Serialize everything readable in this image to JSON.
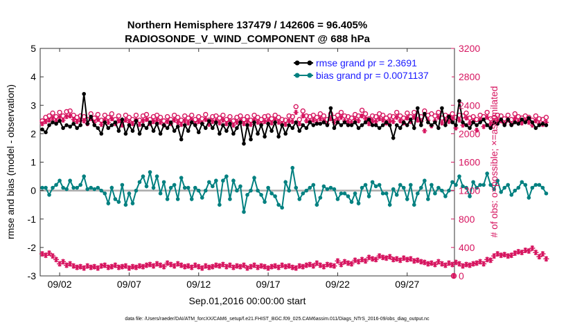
{
  "colors": {
    "rmse": "#000000",
    "bias": "#008080",
    "obs": "#d6145f",
    "rmse_legend_text": "#1a1aff",
    "bias_legend_text": "#1a1aff",
    "zero_line": "#aaaaaa"
  },
  "chart_data": {
    "type": "line",
    "title": "Northern Hemisphere 137479 / 142606 = 96.405%",
    "subtitle": "RADIOSONDE_V_WIND_COMPONENT @ 688 hPa",
    "xlabel": "Sep.01,2016 00:00:00 start",
    "ylabel_left": "rmse and bias (model - observation)",
    "ylabel_right": "# of obs: o=possible; ×=assimilated",
    "footer": "data file: /Users/raeder/DAI/ATM_forcXX/CAM6_setup/f.e21.FHIST_BGC.f09_025.CAM6assim.011/Diags_NTrS_2016-09/obs_diag_output.nc",
    "xlim": [
      0.6,
      30.4
    ],
    "ylim_left": [
      -3,
      5
    ],
    "ylim_right": [
      0,
      3200
    ],
    "xticks": [
      2,
      7,
      12,
      17,
      22,
      27
    ],
    "xtick_labels": [
      "09/02",
      "09/07",
      "09/12",
      "09/17",
      "09/22",
      "09/27"
    ],
    "yticks_left": [
      -3,
      -2,
      -1,
      0,
      1,
      2,
      3,
      4,
      5
    ],
    "ytick_labels_left": [
      "-3",
      "-2",
      "-1",
      "0",
      "1",
      "2",
      "3",
      "4",
      "5"
    ],
    "yticks_right": [
      0,
      400,
      800,
      1200,
      1600,
      2000,
      2400,
      2800,
      3200
    ],
    "ytick_labels_right": [
      "0",
      "400",
      "800",
      "1200",
      "1600",
      "2000",
      "2400",
      "2800",
      "3200"
    ],
    "legend": [
      {
        "name": "rmse grand pr = 2.3691"
      },
      {
        "name": "bias grand pr = 0.0071137"
      }
    ],
    "legend_position": "top-right",
    "x_start": 0.75,
    "x_step": 0.25,
    "series": [
      {
        "name": "rmse",
        "values": [
          2.15,
          2.05,
          2.3,
          2.4,
          2.35,
          2.45,
          2.2,
          2.3,
          2.25,
          2.35,
          2.2,
          2.3,
          3.4,
          2.35,
          2.6,
          2.3,
          2.2,
          2.0,
          2.4,
          2.2,
          2.3,
          2.4,
          2.1,
          2.5,
          2.0,
          2.3,
          2.1,
          2.45,
          2.0,
          2.3,
          2.2,
          2.4,
          2.1,
          2.35,
          2.0,
          2.3,
          2.2,
          2.4,
          2.1,
          2.25,
          1.8,
          2.3,
          2.1,
          2.4,
          2.3,
          2.05,
          2.35,
          2.2,
          2.45,
          2.2,
          2.4,
          2.0,
          2.3,
          2.1,
          2.35,
          2.0,
          2.2,
          2.4,
          1.65,
          2.3,
          1.8,
          2.4,
          2.0,
          2.3,
          1.9,
          2.35,
          2.1,
          2.4,
          1.9,
          2.3,
          2.0,
          2.3,
          2.2,
          2.4,
          2.1,
          2.3,
          2.2,
          2.4,
          2.3,
          2.35,
          2.35,
          2.4,
          2.3,
          2.9,
          2.2,
          2.4,
          2.3,
          2.4,
          2.3,
          2.3,
          2.4,
          2.2,
          2.3,
          2.4,
          2.5,
          2.3,
          2.3,
          2.2,
          2.3,
          2.4,
          2.3,
          1.85,
          2.3,
          2.2,
          2.4,
          2.3,
          2.5,
          2.2,
          2.9,
          2.3,
          2.7,
          2.4,
          2.3,
          2.4,
          2.2,
          2.9,
          2.3,
          2.6,
          2.4,
          2.3,
          3.15,
          2.4,
          2.3,
          2.2,
          2.4,
          2.3,
          2.4,
          2.5,
          2.3,
          2.2,
          2.4,
          2.35,
          2.5,
          2.3,
          2.5,
          2.3,
          2.4,
          2.35,
          2.5,
          2.4,
          2.55,
          2.4,
          2.2,
          2.3,
          2.35,
          2.3
        ]
      },
      {
        "name": "bias",
        "values": [
          0.1,
          0.1,
          -0.15,
          0.1,
          0.2,
          0.35,
          0.1,
          0.05,
          0.35,
          0.1,
          0.1,
          0.2,
          0.5,
          0.05,
          0.1,
          0.05,
          0.1,
          0.0,
          -0.1,
          -0.45,
          0.1,
          -0.3,
          -0.4,
          0.2,
          -0.5,
          -0.1,
          -0.45,
          0.0,
          0.3,
          0.5,
          0.15,
          0.65,
          0.1,
          0.5,
          -0.1,
          0.3,
          -0.3,
          0.1,
          0.2,
          -0.3,
          0.45,
          0.1,
          0.1,
          -0.3,
          0.1,
          0.0,
          -0.25,
          0.0,
          0.3,
          0.15,
          0.35,
          -0.5,
          0.35,
          0.5,
          -0.3,
          0.35,
          0.0,
          0.15,
          -0.75,
          -0.15,
          0.0,
          0.45,
          0.0,
          -0.15,
          -0.4,
          0.1,
          -0.1,
          -0.2,
          -0.5,
          -0.6,
          0.3,
          0.0,
          0.8,
          0.1,
          -0.3,
          -0.1,
          0.0,
          0.1,
          0.2,
          -0.5,
          -0.25,
          0.15,
          0.05,
          0.1,
          0.05,
          -0.3,
          -0.1,
          -0.1,
          -0.2,
          -0.4,
          -0.1,
          -0.45,
          0.1,
          0.2,
          -0.2,
          0.3,
          0.15,
          0.2,
          -0.1,
          -0.1,
          -0.5,
          0.05,
          -0.15,
          0.2,
          0.1,
          -0.3,
          0.2,
          -0.5,
          -0.1,
          0.1,
          0.35,
          -0.3,
          0.2,
          -0.1,
          0.1,
          0.0,
          -0.2,
          0.0,
          0.3,
          0.2,
          0.5,
          0.15,
          0.1,
          -0.2,
          0.3,
          0.1,
          0.2,
          0.2,
          0.6,
          0.2,
          0.05,
          0.35,
          -0.05,
          0.1,
          0.2,
          -0.15,
          0.0,
          0.1,
          0.3,
          0.2,
          -0.25,
          0.1,
          0.2,
          0.2,
          0.1,
          -0.1
        ]
      },
      {
        "name": "obs possible",
        "values": [
          2180,
          2230,
          2250,
          2290,
          2240,
          2300,
          2250,
          2310,
          2320,
          2260,
          2230,
          2250,
          2240,
          2200,
          2280,
          2220,
          2270,
          2190,
          2260,
          2230,
          2280,
          2200,
          2250,
          2180,
          2260,
          2230,
          2200,
          2260,
          2190,
          2250,
          2270,
          2200,
          2240,
          2260,
          2230,
          2180,
          2240,
          2200,
          2260,
          2230,
          2190,
          2250,
          2220,
          2260,
          2200,
          2240,
          2210,
          2270,
          2190,
          2240,
          2250,
          2220,
          2260,
          2200,
          2240,
          2180,
          2230,
          2250,
          2200,
          2240,
          2190,
          2260,
          2230,
          2200,
          2240,
          2250,
          2210,
          2260,
          2230,
          2200,
          2190,
          2250,
          2240,
          2380,
          2200,
          2320,
          2250,
          2240,
          2260,
          2230,
          2280,
          2250,
          2200,
          2280,
          2230,
          2260,
          2300,
          2250,
          2240,
          2220,
          2270,
          2250,
          2330,
          2280,
          2210,
          2250,
          2240,
          2280,
          2260,
          2220,
          2250,
          2240,
          2300,
          2250,
          2220,
          2290,
          2240,
          2300,
          2260,
          2240,
          2320,
          2260,
          2280,
          2250,
          2300,
          2220,
          2260,
          2240,
          2280,
          2230,
          2260,
          2250,
          2290,
          2220,
          2240,
          2200,
          2260,
          2240,
          2300,
          2210,
          2230,
          2260,
          2250,
          2210,
          2260,
          2200,
          2280,
          2240,
          2220,
          2250,
          2230,
          2190,
          2250,
          2210,
          2200,
          2230
        ]
      },
      {
        "name": "obs assimilated",
        "values": [
          2140,
          2170,
          2190,
          2220,
          2180,
          2230,
          2190,
          2240,
          2250,
          2200,
          2170,
          2190,
          2180,
          2140,
          2210,
          2160,
          2200,
          2130,
          2190,
          2160,
          2210,
          2140,
          2180,
          2120,
          2190,
          2160,
          2140,
          2190,
          2130,
          2180,
          2200,
          2140,
          2170,
          2190,
          2160,
          2120,
          2170,
          2140,
          2190,
          2160,
          2130,
          2180,
          2150,
          2190,
          2140,
          2170,
          2150,
          2200,
          2130,
          2170,
          2180,
          2150,
          2190,
          2140,
          2170,
          2120,
          2160,
          2180,
          2140,
          2170,
          2130,
          2190,
          2160,
          2140,
          2170,
          2180,
          2150,
          2190,
          2160,
          2140,
          2130,
          2180,
          2170,
          2300,
          2140,
          2250,
          2180,
          2170,
          2190,
          2160,
          2210,
          2180,
          2140,
          2210,
          2160,
          2190,
          2230,
          2180,
          2170,
          2150,
          2200,
          2180,
          2250,
          2210,
          2140,
          2180,
          2170,
          2210,
          2190,
          2150,
          2180,
          2170,
          2230,
          2180,
          2150,
          2220,
          2170,
          2230,
          2190,
          2170,
          2040,
          2190,
          2110,
          2180,
          2230,
          2150,
          2190,
          2170,
          2210,
          2080,
          2190,
          2120,
          2220,
          2150,
          2170,
          2050,
          2190,
          2100,
          2230,
          2140,
          2160,
          2190,
          2180,
          2140,
          2190,
          2130,
          2210,
          2170,
          2150,
          2180,
          2160,
          2120,
          2180,
          2140,
          2130,
          2160
        ]
      },
      {
        "name": "obs low",
        "values": [
          310,
          290,
          320,
          280,
          230,
          170,
          200,
          150,
          170,
          140,
          120,
          130,
          110,
          140,
          120,
          130,
          110,
          140,
          150,
          120,
          130,
          150,
          120,
          130,
          140,
          110,
          130,
          120,
          140,
          130,
          150,
          160,
          140,
          170,
          150,
          130,
          180,
          160,
          140,
          170,
          150,
          130,
          140,
          120,
          150,
          130,
          110,
          140,
          120,
          130,
          150,
          140,
          160,
          130,
          150,
          120,
          140,
          130,
          150,
          110,
          130,
          150,
          120,
          140,
          130,
          110,
          130,
          140,
          120,
          150,
          130,
          140,
          120,
          110,
          140,
          130,
          150,
          160,
          140,
          180,
          150,
          130,
          160,
          150,
          140,
          210,
          160,
          200,
          180,
          170,
          220,
          200,
          230,
          210,
          260,
          240,
          230,
          280,
          260,
          250,
          270,
          230,
          240,
          220,
          250,
          230,
          240,
          210,
          220,
          200,
          190,
          170,
          180,
          160,
          200,
          170,
          150,
          180,
          160,
          190,
          170,
          140,
          160,
          150,
          170,
          180,
          200,
          170,
          230,
          220,
          280,
          310,
          290,
          300,
          280,
          290,
          320,
          340,
          330,
          360,
          350,
          390,
          330,
          270,
          310,
          240
        ]
      }
    ],
    "end_marker": {
      "x": 30.35,
      "value": 0
    }
  }
}
